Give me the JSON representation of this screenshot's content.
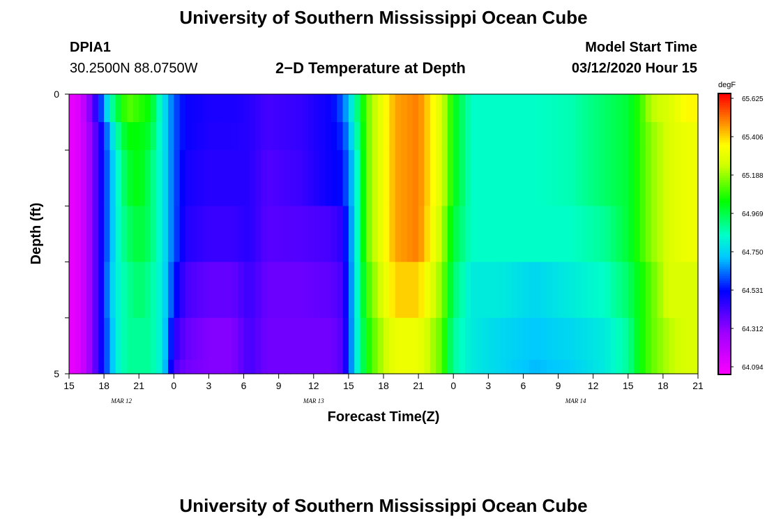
{
  "header": {
    "title": "University of Southern Mississippi Ocean Cube",
    "station": "DPIA1",
    "coords": "30.2500N 88.0750W",
    "subtitle": "2−D Temperature at Depth",
    "model_start_label": "Model Start Time",
    "model_start_value": "03/12/2020 Hour 15"
  },
  "footer": {
    "title": "University of Southern Mississippi Ocean Cube"
  },
  "chart_data": {
    "type": "heatmap",
    "title": "2−D Temperature at Depth",
    "xlabel": "Forecast Time(Z)",
    "ylabel": "Depth (ft)",
    "x_ticks": [
      "15",
      "18",
      "21",
      "0",
      "3",
      "6",
      "9",
      "12",
      "15",
      "18",
      "21",
      "0",
      "3",
      "6",
      "9",
      "12",
      "15",
      "18",
      "21"
    ],
    "x_tick_hours": [
      15,
      18,
      21,
      24,
      27,
      30,
      33,
      36,
      39,
      42,
      45,
      48,
      51,
      54,
      57,
      60,
      63,
      66,
      69
    ],
    "x_range_hours": [
      15,
      69
    ],
    "date_labels": [
      {
        "label": "MAR 12",
        "hour": 19.5
      },
      {
        "label": "MAR 13",
        "hour": 36
      },
      {
        "label": "MAR 14",
        "hour": 58.5
      }
    ],
    "y_ticks": [
      "0",
      "5"
    ],
    "y_range": [
      0,
      5
    ],
    "colorbar": {
      "unit": "degF",
      "min": 64.0,
      "max": 65.7,
      "labels": [
        "65.625",
        "65.406",
        "65.188",
        "64.969",
        "64.750",
        "64.531",
        "64.312",
        "64.094"
      ]
    },
    "depths": [
      0.25,
      0.75,
      1.5,
      2.5,
      3.5,
      4.5,
      4.9
    ],
    "profiles": [
      {
        "hour": 15,
        "values": [
          64.05,
          64.05,
          64.05,
          64.05,
          64.05,
          64.05,
          64.05
        ]
      },
      {
        "hour": 16,
        "values": [
          64.1,
          64.1,
          64.1,
          64.1,
          64.1,
          64.1,
          64.1
        ]
      },
      {
        "hour": 17,
        "values": [
          64.35,
          64.3,
          64.3,
          64.3,
          64.3,
          64.3,
          64.3
        ]
      },
      {
        "hour": 18,
        "values": [
          64.65,
          64.55,
          64.55,
          64.55,
          64.55,
          64.55,
          64.55
        ]
      },
      {
        "hour": 18.5,
        "values": [
          64.85,
          64.7,
          64.65,
          64.65,
          64.7,
          64.65,
          64.65
        ]
      },
      {
        "hour": 19,
        "values": [
          64.95,
          64.85,
          64.8,
          64.8,
          64.8,
          64.8,
          64.8
        ]
      },
      {
        "hour": 20,
        "values": [
          65.15,
          65.05,
          65.0,
          64.95,
          64.9,
          64.9,
          64.9
        ]
      },
      {
        "hour": 21,
        "values": [
          65.1,
          65.05,
          65.05,
          65.0,
          64.95,
          64.9,
          64.9
        ]
      },
      {
        "hour": 22,
        "values": [
          65.05,
          65.0,
          64.95,
          64.95,
          64.9,
          64.9,
          64.9
        ]
      },
      {
        "hour": 23,
        "values": [
          64.8,
          64.8,
          64.8,
          64.8,
          64.8,
          64.8,
          64.8
        ]
      },
      {
        "hour": 24,
        "values": [
          64.6,
          64.6,
          64.6,
          64.6,
          64.55,
          64.45,
          64.4
        ]
      },
      {
        "hour": 25,
        "values": [
          64.5,
          64.5,
          64.48,
          64.46,
          64.4,
          64.35,
          64.33
        ]
      },
      {
        "hour": 27,
        "values": [
          64.47,
          64.46,
          64.45,
          64.42,
          64.35,
          64.3,
          64.3
        ]
      },
      {
        "hour": 29,
        "values": [
          64.47,
          64.46,
          64.45,
          64.42,
          64.35,
          64.3,
          64.3
        ]
      },
      {
        "hour": 30.5,
        "values": [
          64.45,
          64.45,
          64.45,
          64.45,
          64.42,
          64.4,
          64.4
        ]
      },
      {
        "hour": 32,
        "values": [
          64.4,
          64.4,
          64.38,
          64.37,
          64.34,
          64.33,
          64.33
        ]
      },
      {
        "hour": 35,
        "values": [
          64.43,
          64.43,
          64.42,
          64.38,
          64.34,
          64.33,
          64.33
        ]
      },
      {
        "hour": 37.5,
        "values": [
          64.5,
          64.5,
          64.5,
          64.4,
          64.36,
          64.33,
          64.33
        ]
      },
      {
        "hour": 38.5,
        "values": [
          64.6,
          64.55,
          64.52,
          64.45,
          64.4,
          64.38,
          64.38
        ]
      },
      {
        "hour": 39.5,
        "values": [
          64.85,
          64.8,
          64.75,
          64.75,
          64.75,
          64.75,
          64.75
        ]
      },
      {
        "hour": 40.5,
        "values": [
          65.15,
          65.15,
          65.15,
          65.15,
          65.1,
          65.05,
          65.05
        ]
      },
      {
        "hour": 41.5,
        "values": [
          65.3,
          65.3,
          65.3,
          65.3,
          65.25,
          65.2,
          65.2
        ]
      },
      {
        "hour": 43,
        "values": [
          65.5,
          65.5,
          65.5,
          65.5,
          65.45,
          65.35,
          65.35
        ]
      },
      {
        "hour": 45,
        "values": [
          65.55,
          65.55,
          65.55,
          65.55,
          65.45,
          65.35,
          65.35
        ]
      },
      {
        "hour": 47,
        "values": [
          65.3,
          65.3,
          65.3,
          65.25,
          65.2,
          65.15,
          65.15
        ]
      },
      {
        "hour": 48,
        "values": [
          65.05,
          65.05,
          65.05,
          65.0,
          64.95,
          64.9,
          64.9
        ]
      },
      {
        "hour": 49.5,
        "values": [
          64.85,
          64.85,
          64.85,
          64.85,
          64.8,
          64.8,
          64.8
        ]
      },
      {
        "hour": 52,
        "values": [
          64.85,
          64.85,
          64.85,
          64.85,
          64.8,
          64.75,
          64.75
        ]
      },
      {
        "hour": 55,
        "values": [
          64.85,
          64.85,
          64.85,
          64.85,
          64.75,
          64.72,
          64.7
        ]
      },
      {
        "hour": 58,
        "values": [
          64.87,
          64.87,
          64.87,
          64.85,
          64.8,
          64.75,
          64.73
        ]
      },
      {
        "hour": 61,
        "values": [
          64.95,
          64.95,
          64.95,
          64.9,
          64.85,
          64.8,
          64.8
        ]
      },
      {
        "hour": 63,
        "values": [
          65.0,
          65.0,
          65.0,
          65.0,
          64.95,
          64.9,
          64.9
        ]
      },
      {
        "hour": 64,
        "values": [
          65.1,
          65.1,
          65.1,
          65.1,
          65.05,
          65.05,
          65.05
        ]
      },
      {
        "hour": 65,
        "values": [
          65.25,
          65.2,
          65.2,
          65.2,
          65.15,
          65.15,
          65.15
        ]
      },
      {
        "hour": 66.5,
        "values": [
          65.3,
          65.3,
          65.3,
          65.3,
          65.3,
          65.25,
          65.25
        ]
      },
      {
        "hour": 68,
        "values": [
          65.4,
          65.35,
          65.35,
          65.35,
          65.3,
          65.3,
          65.3
        ]
      },
      {
        "hour": 69,
        "values": [
          65.4,
          65.35,
          65.35,
          65.35,
          65.3,
          65.3,
          65.3
        ]
      }
    ]
  }
}
